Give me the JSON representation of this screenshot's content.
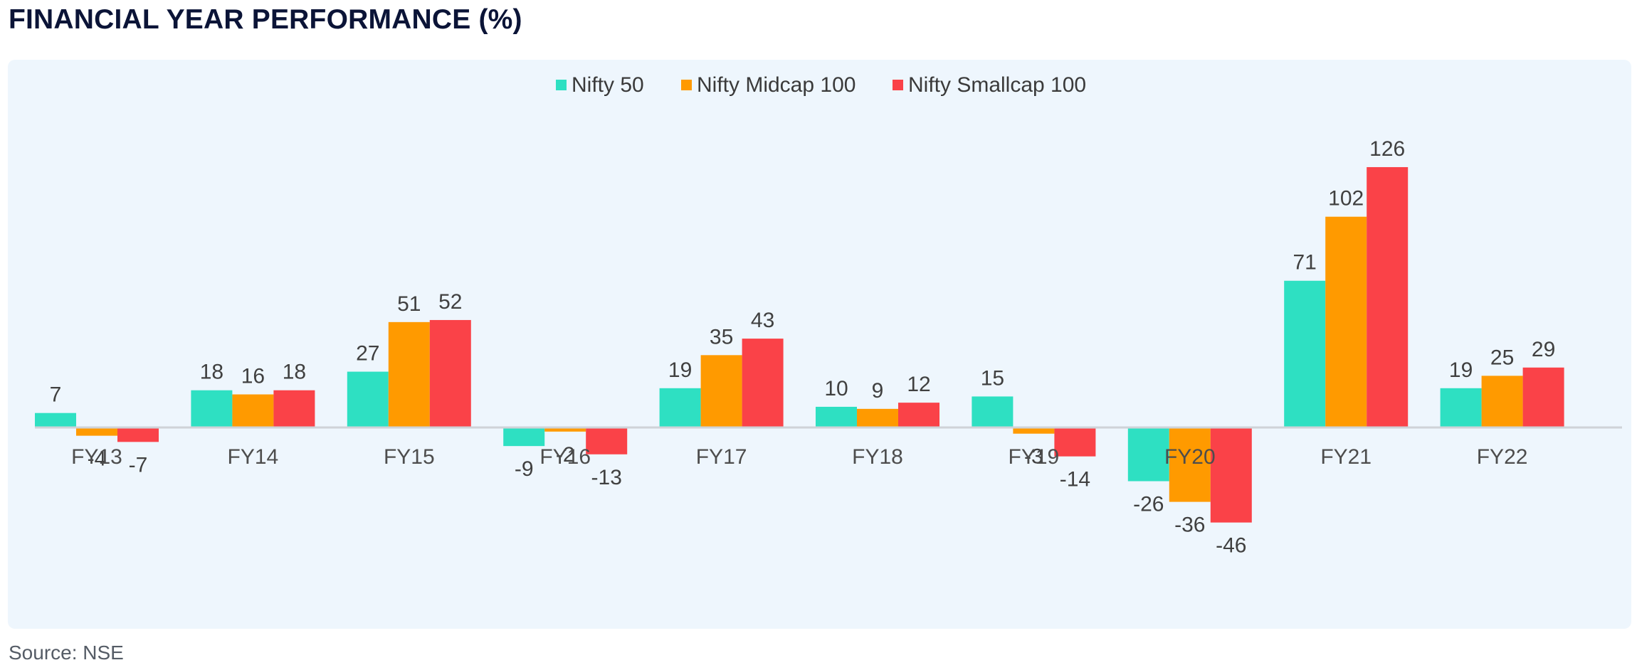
{
  "title": "FINANCIAL YEAR PERFORMANCE (%)",
  "source": "Source: NSE",
  "chart_data": {
    "type": "bar",
    "categories": [
      "FY13",
      "FY14",
      "FY15",
      "FY16",
      "FY17",
      "FY18",
      "FY19",
      "FY20",
      "FY21",
      "FY22"
    ],
    "series": [
      {
        "name": "Nifty 50",
        "color": "#2ee0c2",
        "values": [
          7,
          18,
          27,
          -9,
          19,
          10,
          15,
          -26,
          71,
          19
        ]
      },
      {
        "name": "Nifty Midcap 100",
        "color": "#ff9a00",
        "values": [
          -4,
          16,
          51,
          -2,
          35,
          9,
          -3,
          -36,
          102,
          25
        ]
      },
      {
        "name": "Nifty Smallcap 100",
        "color": "#fa4248",
        "values": [
          -7,
          18,
          52,
          -13,
          43,
          12,
          -14,
          -46,
          126,
          29
        ]
      }
    ],
    "legend_position": "top-center",
    "grid": false,
    "ylim": [
      -60,
      140
    ]
  }
}
